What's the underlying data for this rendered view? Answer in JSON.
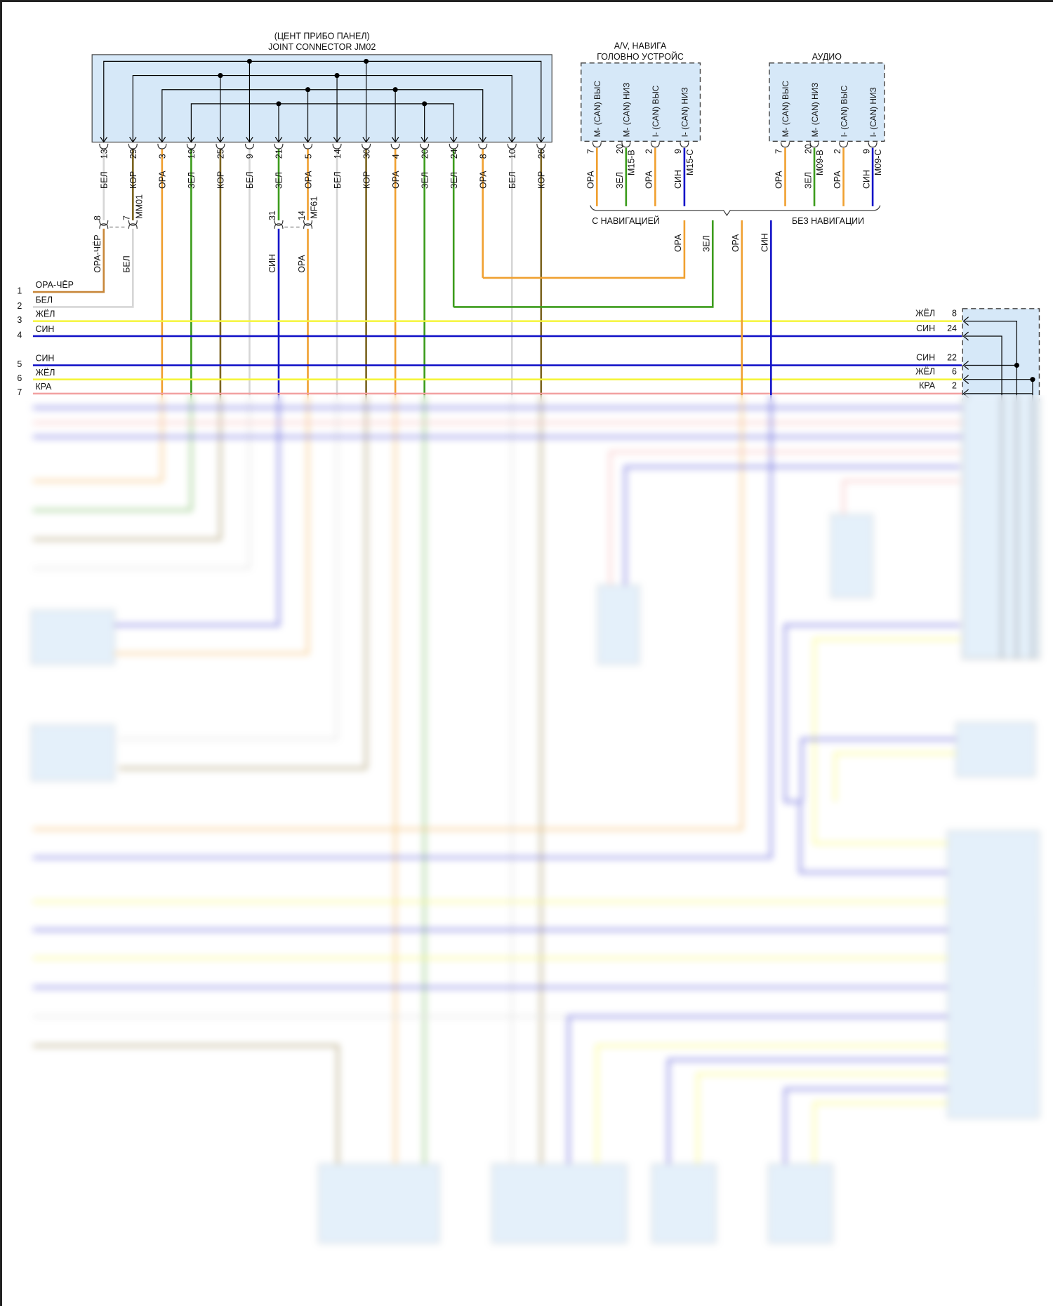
{
  "jm02": {
    "title_line1": "(ЦЕНТ ПРИБО ПАНЕЛ)",
    "title_line2": "JOINT CONNECTOR JM02",
    "pins": [
      {
        "pin": "13",
        "wire": "БЕЛ"
      },
      {
        "pin": "29",
        "wire": "КОР"
      },
      {
        "pin": "3",
        "wire": "ОРА"
      },
      {
        "pin": "19",
        "wire": "ЗЕЛ"
      },
      {
        "pin": "25",
        "wire": "КОР"
      },
      {
        "pin": "9",
        "wire": "БЕЛ"
      },
      {
        "pin": "21",
        "wire": "ЗЕЛ"
      },
      {
        "pin": "5",
        "wire": "ОРА"
      },
      {
        "pin": "14",
        "wire": "БЕЛ"
      },
      {
        "pin": "30",
        "wire": "КОР"
      },
      {
        "pin": "4",
        "wire": "ОРА"
      },
      {
        "pin": "20",
        "wire": "ЗЕЛ"
      },
      {
        "pin": "24",
        "wire": "ЗЕЛ"
      },
      {
        "pin": "8",
        "wire": "ОРА"
      },
      {
        "pin": "10",
        "wire": "БЕЛ"
      },
      {
        "pin": "26",
        "wire": "КОР"
      }
    ]
  },
  "inline_connectors": [
    {
      "name": "MM01",
      "pins": [
        {
          "pin": "8",
          "wire": "ОРА-ЧЁР"
        },
        {
          "pin": "7",
          "wire": "БЕЛ"
        }
      ]
    },
    {
      "name": "MF61",
      "pins": [
        {
          "pin": "31",
          "wire": "СИН"
        },
        {
          "pin": "14",
          "wire": "ОРА"
        }
      ]
    }
  ],
  "nav_unit": {
    "title_line1": "A/V, НАВИГА",
    "title_line2": "ГОЛОВНО УСТРОЙС",
    "terminals": [
      "M- (CAN) ВЫС",
      "M- (CAN) НИЗ",
      "I- (CAN) ВЫС",
      "I- (CAN) НИЗ"
    ],
    "pins": [
      {
        "pin": "7",
        "wire": "ОРА"
      },
      {
        "pin": "20",
        "wire": "ЗЕЛ",
        "conn": "M15-B"
      },
      {
        "pin": "2",
        "wire": "ОРА"
      },
      {
        "pin": "9",
        "wire": "СИН",
        "conn": "M15-C"
      }
    ]
  },
  "audio_unit": {
    "title": "АУДИО",
    "terminals": [
      "M- (CAN) ВЫС",
      "M- (CAN) НИЗ",
      "I- (CAN) ВЫС",
      "I- (CAN) НИЗ"
    ],
    "pins": [
      {
        "pin": "7",
        "wire": "ОРА"
      },
      {
        "pin": "20",
        "wire": "ЗЕЛ",
        "conn": "M09-B"
      },
      {
        "pin": "2",
        "wire": "ОРА"
      },
      {
        "pin": "9",
        "wire": "СИН",
        "conn": "M09-C"
      }
    ]
  },
  "variant_labels": {
    "with_nav": "С НАВИГАЦИЕЙ",
    "without_nav": "БЕЗ НАВИГАЦИИ"
  },
  "merged_wires": [
    "ОРА",
    "ЗЕЛ",
    "ОРА",
    "СИН"
  ],
  "left_rows": [
    {
      "n": "1",
      "wire": "ОРА-ЧЁР"
    },
    {
      "n": "2",
      "wire": "БЕЛ"
    },
    {
      "n": "3",
      "wire": "ЖЁЛ"
    },
    {
      "n": "4",
      "wire": "СИН"
    },
    {
      "n": "5",
      "wire": "СИН"
    },
    {
      "n": "6",
      "wire": "ЖЁЛ"
    },
    {
      "n": "7",
      "wire": "КРА"
    }
  ],
  "right_connector_pins": [
    {
      "pin": "8",
      "wire": "ЖЁЛ"
    },
    {
      "pin": "24",
      "wire": "СИН"
    },
    {
      "pin": "22",
      "wire": "СИН"
    },
    {
      "pin": "6",
      "wire": "ЖЁЛ"
    },
    {
      "pin": "2",
      "wire": "КРА"
    }
  ],
  "wire_colors": {
    "БЕЛ": "#d6d6d6",
    "КОР": "#7b6420",
    "ОРА": "#f0a030",
    "ЗЕЛ": "#3c9c1c",
    "СИН": "#1414c8",
    "ЖЁЛ": "#f5f53a",
    "КРА": "#f2a0a0",
    "ОРА-ЧЁР": "#c8873a"
  },
  "connector_fill": "#d6e8f8"
}
